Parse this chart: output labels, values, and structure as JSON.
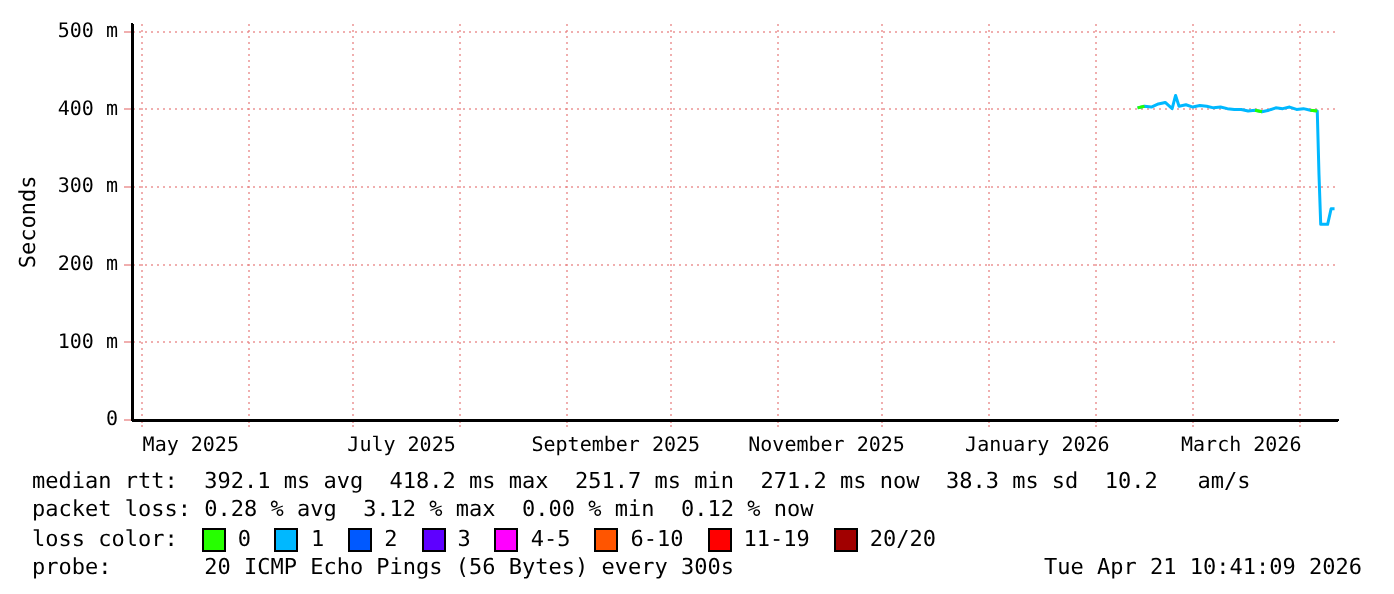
{
  "chart_data": {
    "type": "line",
    "ylabel": "Seconds",
    "legend_title": "loss color:",
    "legend": "bottom",
    "grid": true,
    "marker": "none",
    "xlim": [
      "2025-04-28",
      "2026-04-12"
    ],
    "xticks": [
      {
        "value": "2025-05-01",
        "label": null
      },
      {
        "value": "2025-05-15",
        "label": "May 2025"
      },
      {
        "value": "2025-06-01",
        "label": null
      },
      {
        "value": "2025-07-01",
        "label": null
      },
      {
        "value": "2025-07-15",
        "label": "July 2025"
      },
      {
        "value": "2025-08-01",
        "label": null
      },
      {
        "value": "2025-09-01",
        "label": null
      },
      {
        "value": "2025-09-15",
        "label": "September 2025"
      },
      {
        "value": "2025-10-01",
        "label": null
      },
      {
        "value": "2025-11-01",
        "label": null
      },
      {
        "value": "2025-11-15",
        "label": "November 2025"
      },
      {
        "value": "2025-12-01",
        "label": null
      },
      {
        "value": "2026-01-01",
        "label": null
      },
      {
        "value": "2026-01-15",
        "label": "January 2026"
      },
      {
        "value": "2026-02-01",
        "label": null
      },
      {
        "value": "2026-03-01",
        "label": null
      },
      {
        "value": "2026-03-15",
        "label": "March 2026"
      },
      {
        "value": "2026-04-01",
        "label": null
      }
    ],
    "ylim": [
      0,
      510
    ],
    "yticks": [
      {
        "value": 0,
        "label": "0"
      },
      {
        "value": 100,
        "label": "100 m"
      },
      {
        "value": 200,
        "label": "200 m"
      },
      {
        "value": 300,
        "label": "300 m"
      },
      {
        "value": 400,
        "label": "400 m"
      },
      {
        "value": 500,
        "label": "500 m"
      }
    ],
    "series": [
      {
        "name": "0",
        "color": "#26ff00",
        "x": [
          "2026-02-13",
          "2026-02-15",
          "2026-02-16",
          "2026-03-19",
          "2026-03-21",
          "2026-03-22",
          "2026-04-04",
          "2026-04-06"
        ],
        "values": [
          402,
          404,
          null,
          399,
          397,
          null,
          399,
          398
        ]
      },
      {
        "name": "1",
        "color": "#00b8ff",
        "x": [
          "2026-02-13",
          "2026-02-15",
          "2026-02-17",
          "2026-02-19",
          "2026-02-21",
          "2026-02-23",
          "2026-02-24",
          "2026-02-25",
          "2026-02-27",
          "2026-03-01",
          "2026-03-03",
          "2026-03-05",
          "2026-03-07",
          "2026-03-09",
          "2026-03-11",
          "2026-03-13",
          "2026-03-15",
          "2026-03-17",
          "2026-03-19",
          "2026-03-21",
          "2026-03-23",
          "2026-03-25",
          "2026-03-27",
          "2026-03-29",
          "2026-03-31",
          "2026-04-02",
          "2026-04-04",
          "2026-04-06",
          "2026-04-06T12:00",
          "2026-04-07",
          "2026-04-09",
          "2026-04-10",
          "2026-04-11"
        ],
        "values": [
          402,
          404,
          403,
          407,
          409,
          401,
          418,
          404,
          406,
          403,
          405,
          404,
          402,
          403,
          401,
          400,
          400,
          398,
          399,
          397,
          399,
          402,
          401,
          403,
          400,
          401,
          399,
          398,
          316,
          252,
          252,
          272,
          272
        ]
      },
      {
        "name": "2",
        "color": "#0059ff"
      },
      {
        "name": "3",
        "color": "#5e00ff"
      },
      {
        "name": "4-5",
        "color": "#ff00ff"
      },
      {
        "name": "6-10",
        "color": "#ff5500"
      },
      {
        "name": "11-19",
        "color": "#ff0000"
      },
      {
        "name": "20/20",
        "color": "#a10000"
      }
    ],
    "annotations": [
      "median rtt:  392.1 ms avg  418.2 ms max  251.7 ms min  271.2 ms now  38.3 ms sd  10.2   am/s",
      "packet loss: 0.28 % avg  3.12 % max  0.00 % min  0.12 % now",
      "probe:       20 ICMP Echo Pings (56 Bytes) every 300s",
      "Tue Apr 21 10:41:09 2026"
    ]
  }
}
